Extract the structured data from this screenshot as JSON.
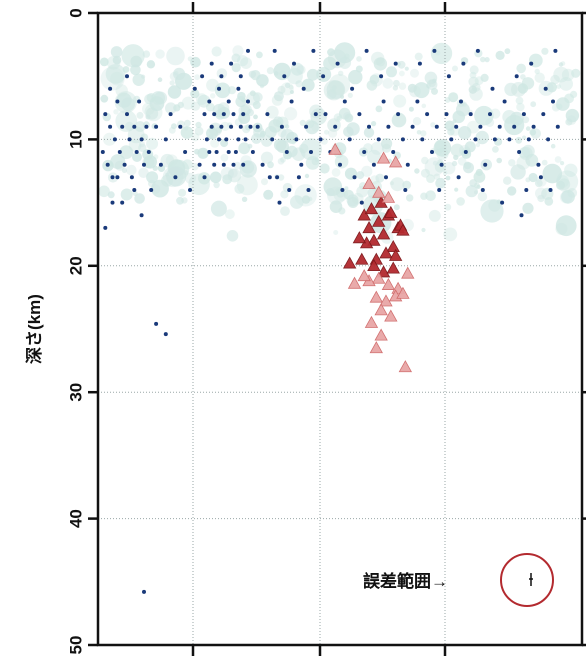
{
  "chart_data": {
    "type": "scatter",
    "ylabel": "深さ(km)",
    "ylim": [
      0,
      50
    ],
    "y_inverted": true,
    "x_tick_labels": false,
    "y_ticks": [
      0,
      10,
      20,
      30,
      40,
      50
    ],
    "y_tick_labels": [
      "0",
      "10",
      "20",
      "30",
      "40",
      "50"
    ],
    "grid": "dotted",
    "colors": {
      "background_cloud": "#cfe7e3",
      "shallow_events": "#1a3a7a",
      "deep_events_fill": "#b32a2f",
      "deep_events_light": "#e8a6a6",
      "error_circle": "#b32a2f"
    },
    "series": [
      {
        "marker": "dot",
        "color": "#1a3a7a",
        "points": [
          [
            2,
            11
          ],
          [
            3,
            8
          ],
          [
            4,
            12
          ],
          [
            5,
            9
          ],
          [
            6,
            13
          ],
          [
            7,
            10
          ],
          [
            8,
            7
          ],
          [
            9,
            11
          ],
          [
            10,
            9
          ],
          [
            11,
            12
          ],
          [
            12,
            8
          ],
          [
            13,
            10
          ],
          [
            14,
            13
          ],
          [
            15,
            9
          ],
          [
            16,
            11
          ],
          [
            17,
            7
          ],
          [
            18,
            10
          ],
          [
            19,
            12
          ],
          [
            20,
            9
          ],
          [
            21,
            11
          ],
          [
            12,
            5
          ],
          [
            15,
            14
          ],
          [
            10,
            15
          ],
          [
            18,
            16
          ],
          [
            8,
            13
          ],
          [
            6,
            15
          ],
          [
            22,
            14
          ],
          [
            5,
            6
          ],
          [
            24,
            9
          ],
          [
            26,
            12
          ],
          [
            28,
            10
          ],
          [
            30,
            8
          ],
          [
            32,
            13
          ],
          [
            34,
            9
          ],
          [
            36,
            11
          ],
          [
            38,
            14
          ],
          [
            40,
            6
          ],
          [
            3,
            17
          ],
          [
            44,
            8
          ],
          [
            45,
            10
          ],
          [
            46,
            7
          ],
          [
            47,
            9
          ],
          [
            48,
            8
          ],
          [
            49,
            11
          ],
          [
            50,
            6
          ],
          [
            51,
            9
          ],
          [
            52,
            8
          ],
          [
            53,
            10
          ],
          [
            54,
            7
          ],
          [
            55,
            9
          ],
          [
            56,
            8
          ],
          [
            57,
            11
          ],
          [
            58,
            6
          ],
          [
            59,
            9
          ],
          [
            60,
            8
          ],
          [
            61,
            10
          ],
          [
            62,
            7
          ],
          [
            63,
            9
          ],
          [
            42,
            12
          ],
          [
            44,
            13
          ],
          [
            46,
            11
          ],
          [
            48,
            12
          ],
          [
            50,
            10
          ],
          [
            52,
            12
          ],
          [
            54,
            11
          ],
          [
            56,
            12
          ],
          [
            58,
            10
          ],
          [
            60,
            12
          ],
          [
            43,
            5
          ],
          [
            47,
            4
          ],
          [
            51,
            5
          ],
          [
            55,
            4
          ],
          [
            59,
            5
          ],
          [
            62,
            3
          ],
          [
            64,
            11
          ],
          [
            66,
            9
          ],
          [
            68,
            12
          ],
          [
            70,
            8
          ],
          [
            72,
            10
          ],
          [
            74,
            13
          ],
          [
            76,
            9
          ],
          [
            78,
            11
          ],
          [
            80,
            7
          ],
          [
            82,
            10
          ],
          [
            84,
            12
          ],
          [
            86,
            9
          ],
          [
            88,
            11
          ],
          [
            90,
            8
          ],
          [
            73,
            3
          ],
          [
            77,
            5
          ],
          [
            81,
            4
          ],
          [
            85,
            6
          ],
          [
            89,
            3
          ],
          [
            79,
            14
          ],
          [
            83,
            13
          ],
          [
            87,
            14
          ],
          [
            75,
            15
          ],
          [
            71,
            13
          ],
          [
            92,
            10
          ],
          [
            94,
            8
          ],
          [
            96,
            11
          ],
          [
            98,
            9
          ],
          [
            100,
            12
          ],
          [
            102,
            7
          ],
          [
            104,
            10
          ],
          [
            106,
            13
          ],
          [
            108,
            8
          ],
          [
            110,
            11
          ],
          [
            112,
            9
          ],
          [
            114,
            12
          ],
          [
            116,
            10
          ],
          [
            118,
            7
          ],
          [
            120,
            9
          ],
          [
            122,
            11
          ],
          [
            124,
            8
          ],
          [
            126,
            10
          ],
          [
            128,
            12
          ],
          [
            130,
            9
          ],
          [
            93,
            5
          ],
          [
            99,
            4
          ],
          [
            105,
            6
          ],
          [
            111,
            3
          ],
          [
            117,
            5
          ],
          [
            123,
            4
          ],
          [
            101,
            14
          ],
          [
            109,
            15
          ],
          [
            119,
            13
          ],
          [
            127,
            14
          ],
          [
            132,
            7
          ],
          [
            134,
            10
          ],
          [
            136,
            8
          ],
          [
            138,
            11
          ],
          [
            140,
            9
          ],
          [
            142,
            12
          ],
          [
            144,
            8
          ],
          [
            146,
            10
          ],
          [
            148,
            9
          ],
          [
            150,
            7
          ],
          [
            152,
            11
          ],
          [
            154,
            8
          ],
          [
            156,
            10
          ],
          [
            158,
            9
          ],
          [
            160,
            12
          ],
          [
            162,
            8
          ],
          [
            164,
            10
          ],
          [
            166,
            9
          ],
          [
            168,
            7
          ],
          [
            170,
            10
          ],
          [
            133,
            4
          ],
          [
            139,
            3
          ],
          [
            145,
            5
          ],
          [
            151,
            4
          ],
          [
            157,
            3
          ],
          [
            163,
            6
          ],
          [
            141,
            14
          ],
          [
            149,
            13
          ],
          [
            159,
            14
          ],
          [
            167,
            15
          ],
          [
            172,
            9
          ],
          [
            174,
            11
          ],
          [
            176,
            8
          ],
          [
            178,
            10
          ],
          [
            180,
            9
          ],
          [
            182,
            12
          ],
          [
            184,
            8
          ],
          [
            186,
            10
          ],
          [
            188,
            7
          ],
          [
            190,
            9
          ],
          [
            173,
            5
          ],
          [
            179,
            4
          ],
          [
            185,
            6
          ],
          [
            189,
            3
          ],
          [
            177,
            14
          ],
          [
            183,
            13
          ],
          [
            187,
            14
          ],
          [
            175,
            16
          ],
          [
            24,
            24.6
          ],
          [
            28,
            25.4
          ],
          [
            19,
            45.8
          ]
        ]
      },
      {
        "marker": "triangle",
        "color": "#b32a2f",
        "points": [
          [
            110,
            16
          ],
          [
            112,
            17
          ],
          [
            114,
            18
          ],
          [
            116,
            16.5
          ],
          [
            118,
            17.5
          ],
          [
            120,
            16
          ],
          [
            122,
            18.5
          ],
          [
            124,
            17
          ],
          [
            113,
            15.5
          ],
          [
            117,
            15
          ],
          [
            121,
            15.8
          ],
          [
            119,
            19
          ],
          [
            115,
            19.5
          ],
          [
            123,
            19.2
          ],
          [
            111,
            18.2
          ],
          [
            125,
            16.8
          ],
          [
            114,
            20
          ],
          [
            118,
            20.5
          ],
          [
            122,
            20.2
          ],
          [
            116,
            21
          ],
          [
            120,
            21.5
          ],
          [
            112,
            21.2
          ],
          [
            124,
            21.8
          ],
          [
            110,
            20.8
          ],
          [
            115,
            22.5
          ],
          [
            119,
            22.8
          ],
          [
            123,
            22.4
          ],
          [
            117,
            23.5
          ],
          [
            121,
            24
          ],
          [
            113,
            24.5
          ],
          [
            117,
            25.5
          ],
          [
            115,
            26.5
          ],
          [
            104,
            19.8
          ],
          [
            128,
            20.6
          ],
          [
            126,
            22.2
          ],
          [
            106,
            21.4
          ],
          [
            127,
            28
          ],
          [
            118,
            11.5
          ],
          [
            123,
            11.8
          ],
          [
            98,
            10.8
          ],
          [
            112,
            13.5
          ],
          [
            116,
            14.2
          ],
          [
            120,
            14.6
          ],
          [
            126,
            17.2
          ],
          [
            108,
            17.8
          ],
          [
            109,
            19.5
          ]
        ]
      }
    ],
    "annotations": {
      "error_range_label": "誤差範囲→"
    }
  }
}
